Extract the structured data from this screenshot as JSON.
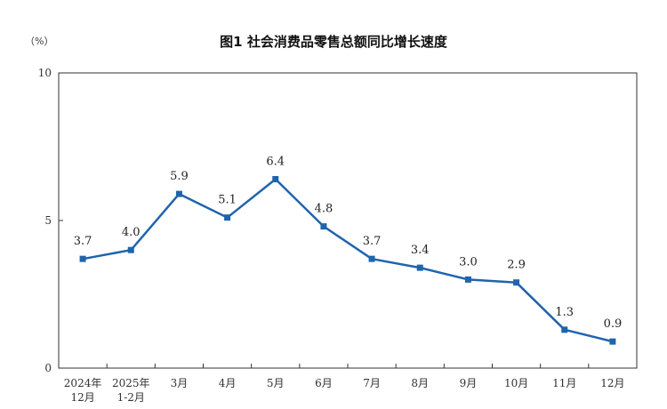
{
  "chart_data": {
    "type": "line",
    "title": "图1  社会消费品零售总额同比增长速度",
    "unit_label": "（%）",
    "categories": [
      [
        "2024年",
        "12月"
      ],
      [
        "2025年",
        "1-2月"
      ],
      [
        "3月"
      ],
      [
        "4月"
      ],
      [
        "5月"
      ],
      [
        "6月"
      ],
      [
        "7月"
      ],
      [
        "8月"
      ],
      [
        "9月"
      ],
      [
        "10月"
      ],
      [
        "11月"
      ],
      [
        "12月"
      ]
    ],
    "values": [
      3.7,
      4.0,
      5.9,
      5.1,
      6.4,
      4.8,
      3.7,
      3.4,
      3.0,
      2.9,
      1.3,
      0.9
    ],
    "value_labels": [
      "3.7",
      "4.0",
      "5.9",
      "5.1",
      "6.4",
      "4.8",
      "3.7",
      "3.4",
      "3.0",
      "2.9",
      "1.3",
      "0.9"
    ],
    "ylim": [
      0,
      10
    ],
    "yticks": [
      0,
      5,
      10
    ],
    "ytick_labels": [
      "0",
      "5",
      "10"
    ],
    "grid": false,
    "colors": {
      "line": "#1f64ad",
      "axis": "#333333"
    }
  }
}
